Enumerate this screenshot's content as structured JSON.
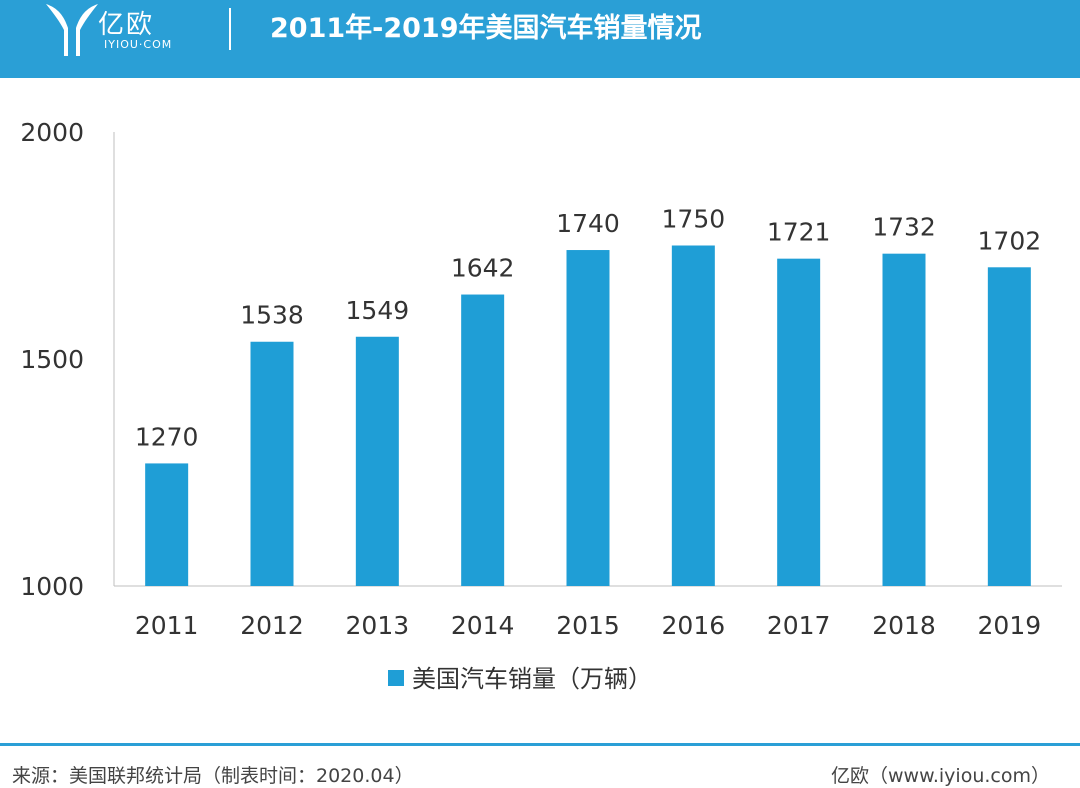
{
  "header": {
    "logo_text": "亿欧",
    "logo_sub": "IYIOU·COM",
    "title": "2011年-2019年美国汽车销量情况"
  },
  "footer": {
    "source": "来源：美国联邦统计局（制表时间：2020.04）",
    "brand": "亿欧（www.iyiou.com）"
  },
  "colors": {
    "brand": "#2a9fd6",
    "bar": "#1f9ed6",
    "text": "#333333"
  },
  "chart_data": {
    "type": "bar",
    "categories": [
      "2011",
      "2012",
      "2013",
      "2014",
      "2015",
      "2016",
      "2017",
      "2018",
      "2019"
    ],
    "series": [
      {
        "name": "美国汽车销量（万辆）",
        "values": [
          1270,
          1538,
          1549,
          1642,
          1740,
          1750,
          1721,
          1732,
          1702
        ]
      }
    ],
    "ylim": [
      1000,
      2000
    ],
    "yticks": [
      "2000",
      "1500",
      "1000"
    ],
    "data_labels": [
      "1270",
      "1538",
      "1549",
      "1642",
      "1740",
      "1750",
      "1721",
      "1732",
      "1702"
    ],
    "grid": false,
    "legend_position": "bottom-center"
  }
}
